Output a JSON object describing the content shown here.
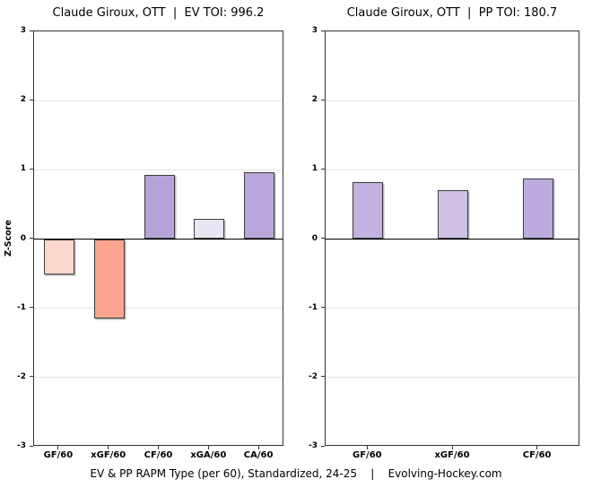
{
  "caption": "EV & PP RAPM Type (per 60), Standardized, 24-25    |    Evolving-Hockey.com",
  "colors": {
    "panel_border": "#333333",
    "grid": "#e4e4e4",
    "zero_line": "#000000",
    "bar_border": "#3c3c3c",
    "background": "#ffffff",
    "negative_strong": "#faa58f",
    "negative_light": "#fcd7cb",
    "positive_strong": "#b5a3d8",
    "positive_light": "#e9e5f2"
  },
  "chart_data": [
    {
      "type": "bar",
      "title": "Claude Giroux, OTT  |  EV TOI: 996.2",
      "categories": [
        "GF/60",
        "xGF/60",
        "CF/60",
        "xGA/60",
        "CA/60"
      ],
      "values": [
        -0.51,
        -1.15,
        0.93,
        0.29,
        0.96
      ],
      "bar_colors": [
        "#fcd7cb",
        "#faa58f",
        "#b5a3d8",
        "#e9e5f2",
        "#b9a7db"
      ],
      "xlabel": "",
      "ylabel": "Z-Score",
      "ylim": [
        -3,
        3
      ],
      "yticks": [
        3,
        2,
        1,
        0,
        -1,
        -2,
        -3
      ],
      "grid": true,
      "legend": "none"
    },
    {
      "type": "bar",
      "title": "Claude Giroux, OTT  |  PP TOI: 180.7",
      "categories": [
        "GF/60",
        "xGF/60",
        "CF/60"
      ],
      "values": [
        0.82,
        0.71,
        0.88
      ],
      "bar_colors": [
        "#c3b2df",
        "#cfc2e6",
        "#bcabdd"
      ],
      "xlabel": "",
      "ylabel": "",
      "ylim": [
        -3,
        3
      ],
      "yticks": [
        3,
        2,
        1,
        0,
        -1,
        -2,
        -3
      ],
      "grid": true,
      "legend": "none"
    }
  ]
}
